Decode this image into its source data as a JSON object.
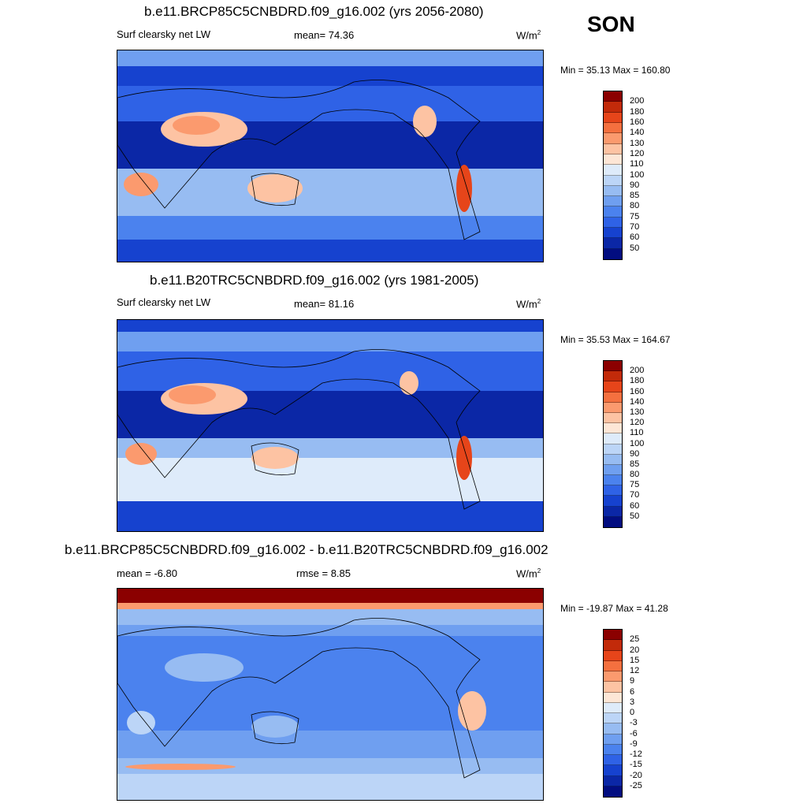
{
  "season": "SON",
  "panels": [
    {
      "title": "b.e11.BRCP85C5CNBDRD.f09_g16.002 (yrs 2056-2080)",
      "left_label": "Surf clearsky net LW",
      "mid_label": "mean=  74.36",
      "units": "W/m",
      "units_sup": "2",
      "minmax": "Min =  35.13 Max = 160.80",
      "colorbar": {
        "levels": [
          "200",
          "180",
          "160",
          "140",
          "130",
          "120",
          "110",
          "100",
          "90",
          "85",
          "80",
          "75",
          "70",
          "60",
          "50"
        ],
        "colors": [
          "#8b0000",
          "#c22a0a",
          "#e6451a",
          "#f4703f",
          "#fb9a6e",
          "#fdc3a3",
          "#fde6d6",
          "#deebfa",
          "#bcd5f7",
          "#97bcf2",
          "#6f9ff0",
          "#4b82ee",
          "#2f62e6",
          "#1642cf",
          "#0b27a6",
          "#020d80"
        ]
      }
    },
    {
      "title": "b.e11.B20TRC5CNBDRD.f09_g16.002 (yrs 1981-2005)",
      "left_label": "Surf clearsky net LW",
      "mid_label": "mean=  81.16",
      "units": "W/m",
      "units_sup": "2",
      "minmax": "Min =  35.53 Max = 164.67",
      "colorbar": {
        "levels": [
          "200",
          "180",
          "160",
          "140",
          "130",
          "120",
          "110",
          "100",
          "90",
          "85",
          "80",
          "75",
          "70",
          "60",
          "50"
        ],
        "colors": [
          "#8b0000",
          "#c22a0a",
          "#e6451a",
          "#f4703f",
          "#fb9a6e",
          "#fdc3a3",
          "#fde6d6",
          "#deebfa",
          "#bcd5f7",
          "#97bcf2",
          "#6f9ff0",
          "#4b82ee",
          "#2f62e6",
          "#1642cf",
          "#0b27a6",
          "#020d80"
        ]
      }
    },
    {
      "title": "b.e11.BRCP85C5CNBDRD.f09_g16.002 - b.e11.B20TRC5CNBDRD.f09_g16.002",
      "left_label": "mean =  -6.80",
      "mid_label": "rmse =   8.85",
      "units": "W/m",
      "units_sup": "2",
      "minmax": "Min = -19.87 Max =  41.28",
      "colorbar": {
        "levels": [
          "25",
          "20",
          "15",
          "12",
          "9",
          "6",
          "3",
          "0",
          "-3",
          "-6",
          "-9",
          "-12",
          "-15",
          "-20",
          "-25"
        ],
        "colors": [
          "#8b0000",
          "#c22a0a",
          "#e6451a",
          "#f4703f",
          "#fb9a6e",
          "#fdc3a3",
          "#fde6d6",
          "#deebfa",
          "#bcd5f7",
          "#97bcf2",
          "#6f9ff0",
          "#4b82ee",
          "#2f62e6",
          "#1642cf",
          "#0b27a6",
          "#020d80"
        ]
      }
    }
  ]
}
